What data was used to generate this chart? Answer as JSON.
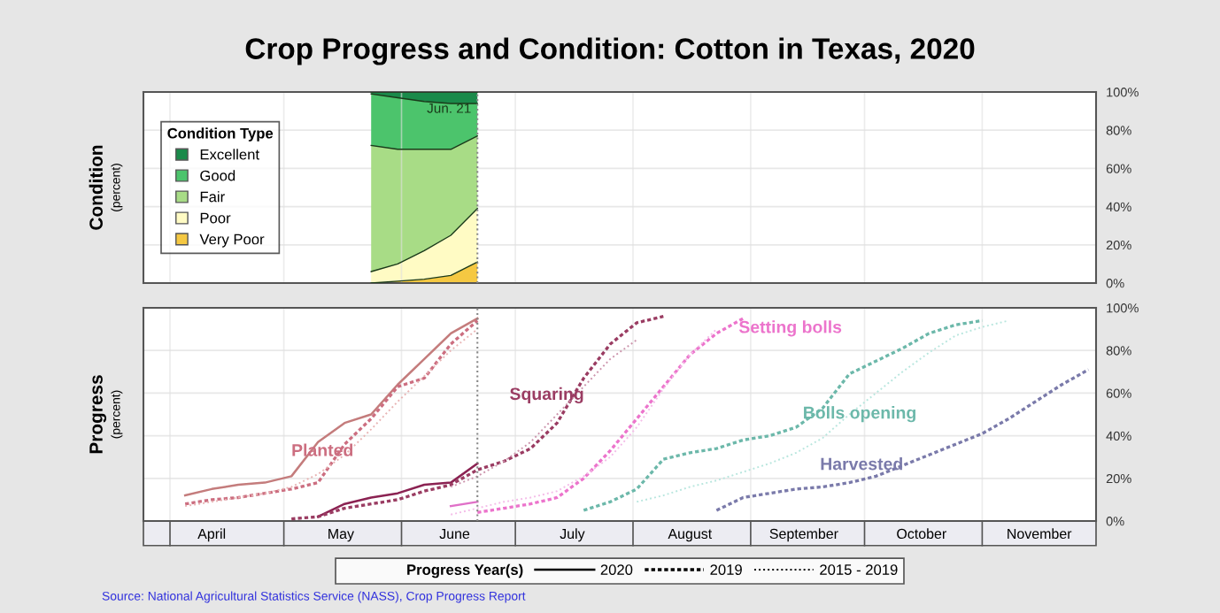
{
  "chart_data": [
    {
      "type": "area",
      "stacked": true,
      "title": "Crop Progress and Condition: Cotton in Texas, 2020",
      "ylabel": "Condition\n(percent)",
      "legend_title": "Condition Type",
      "legend": "center left",
      "grid": true,
      "tick_labels": "y",
      "x": [
        "2020-05-24",
        "2020-05-31",
        "2020-06-07",
        "2020-06-14",
        "2020-06-21"
      ],
      "series": [
        {
          "name": "Very Poor",
          "color": "#f5c842",
          "values": [
            0,
            1,
            2,
            4,
            11
          ]
        },
        {
          "name": "Poor",
          "color": "#fffbc4",
          "values": [
            6,
            9,
            15,
            21,
            28
          ]
        },
        {
          "name": "Fair",
          "color": "#a8dc86",
          "values": [
            66,
            60,
            53,
            45,
            38
          ]
        },
        {
          "name": "Good",
          "color": "#4cc46c",
          "values": [
            27,
            27,
            25,
            24,
            17
          ]
        },
        {
          "name": "Excellent",
          "color": "#1a8a4a",
          "values": [
            1,
            3,
            5,
            6,
            6
          ]
        }
      ],
      "xlim": [
        "2020-03-25",
        "2020-12-01"
      ],
      "xticks": [
        {
          "value": "2020-04-01",
          "label": null
        },
        {
          "value": "2020-05-01",
          "label": null
        },
        {
          "value": "2020-06-01",
          "label": null
        },
        {
          "value": "2020-07-01",
          "label": null
        },
        {
          "value": "2020-08-01",
          "label": null
        },
        {
          "value": "2020-09-01",
          "label": null
        },
        {
          "value": "2020-10-01",
          "label": null
        },
        {
          "value": "2020-11-01",
          "label": null
        }
      ],
      "ylim": [
        0,
        100
      ],
      "yticks": [
        {
          "value": 0,
          "label": "0%"
        },
        {
          "value": 20,
          "label": "20%"
        },
        {
          "value": 40,
          "label": "40%"
        },
        {
          "value": 60,
          "label": "60%"
        },
        {
          "value": 80,
          "label": "80%"
        },
        {
          "value": 100,
          "label": "100%"
        }
      ],
      "ref_lines": [
        {
          "axis": "x",
          "value": "2020-06-21",
          "label": "Jun. 21",
          "color": "#888888",
          "line_style": "dotted"
        }
      ]
    },
    {
      "type": "line",
      "ylabel": "Progress\n(percent)",
      "legend_title": "Progress Year(s)",
      "grid": true,
      "series": [
        {
          "color": "#c47c7c",
          "line_style": "solid",
          "x": [
            "2020-04-05",
            "2020-04-12",
            "2020-04-19",
            "2020-04-26",
            "2020-05-03",
            "2020-05-10",
            "2020-05-17",
            "2020-05-24",
            "2020-05-31",
            "2020-06-07",
            "2020-06-14",
            "2020-06-21"
          ],
          "values": [
            12,
            15,
            17,
            18,
            21,
            37,
            46,
            50,
            64,
            76,
            88,
            95
          ]
        },
        {
          "name": "Planted",
          "color": "#cc6e80",
          "line_style": "dashed",
          "x": [
            "2020-04-05",
            "2020-04-12",
            "2020-04-19",
            "2020-04-26",
            "2020-05-03",
            "2020-05-10",
            "2020-05-17",
            "2020-05-24",
            "2020-05-31",
            "2020-06-07",
            "2020-06-14",
            "2020-06-21"
          ],
          "values": [
            8,
            10,
            11,
            13,
            15,
            18,
            36,
            48,
            63,
            67,
            83,
            94
          ]
        },
        {
          "color": "#e8b4b4",
          "line_style": "dotted",
          "x": [
            "2020-04-05",
            "2020-04-12",
            "2020-04-19",
            "2020-04-26",
            "2020-05-03",
            "2020-05-10",
            "2020-05-17",
            "2020-05-24",
            "2020-05-31",
            "2020-06-07",
            "2020-06-14",
            "2020-06-21"
          ],
          "values": [
            7,
            9,
            11,
            13,
            16,
            22,
            31,
            43,
            56,
            68,
            80,
            90
          ]
        },
        {
          "color": "#8b2252",
          "line_style": "solid",
          "x": [
            "2020-05-10",
            "2020-05-17",
            "2020-05-24",
            "2020-05-31",
            "2020-06-07",
            "2020-06-14",
            "2020-06-21"
          ],
          "values": [
            2,
            8,
            11,
            13,
            17,
            18,
            27
          ]
        },
        {
          "name": "Squaring",
          "color": "#9a3c62",
          "line_style": "dashed",
          "x": [
            "2020-05-03",
            "2020-05-10",
            "2020-05-17",
            "2020-05-24",
            "2020-05-31",
            "2020-06-07",
            "2020-06-14",
            "2020-06-21",
            "2020-06-28",
            "2020-07-05",
            "2020-07-12",
            "2020-07-19",
            "2020-07-26",
            "2020-08-02",
            "2020-08-09"
          ],
          "values": [
            1,
            2,
            6,
            8,
            10,
            14,
            17,
            24,
            28,
            34,
            46,
            67,
            83,
            93,
            96
          ]
        },
        {
          "color": "#cc94ac",
          "line_style": "dotted",
          "x": [
            "2020-06-14",
            "2020-06-21",
            "2020-06-28",
            "2020-07-05",
            "2020-07-12",
            "2020-07-19",
            "2020-07-26",
            "2020-08-02"
          ],
          "values": [
            16,
            21,
            28,
            37,
            50,
            63,
            76,
            85
          ]
        },
        {
          "color": "#e070c8",
          "line_style": "solid",
          "x": [
            "2020-06-14",
            "2020-06-21"
          ],
          "values": [
            7,
            9
          ]
        },
        {
          "name": "Setting bolls",
          "color": "#ec74cc",
          "line_style": "dashed",
          "x": [
            "2020-06-21",
            "2020-06-28",
            "2020-07-05",
            "2020-07-12",
            "2020-07-19",
            "2020-07-26",
            "2020-08-02",
            "2020-08-09",
            "2020-08-16",
            "2020-08-23",
            "2020-08-30"
          ],
          "values": [
            4,
            6,
            8,
            11,
            20,
            33,
            48,
            63,
            78,
            88,
            95
          ]
        },
        {
          "color": "#f4bce8",
          "line_style": "dotted",
          "x": [
            "2020-06-14",
            "2020-06-21",
            "2020-06-28",
            "2020-07-05",
            "2020-07-12",
            "2020-07-19",
            "2020-07-26",
            "2020-08-02",
            "2020-08-09",
            "2020-08-16",
            "2020-08-23"
          ],
          "values": [
            3,
            6,
            9,
            11,
            14,
            21,
            30,
            44,
            62,
            78,
            90
          ]
        },
        {
          "name": "Bolls opening",
          "color": "#6cb8aa",
          "line_style": "dashed",
          "x": [
            "2020-07-19",
            "2020-07-26",
            "2020-08-02",
            "2020-08-09",
            "2020-08-16",
            "2020-08-23",
            "2020-08-30",
            "2020-09-06",
            "2020-09-13",
            "2020-09-20",
            "2020-09-27",
            "2020-10-04",
            "2020-10-11",
            "2020-10-18",
            "2020-10-25",
            "2020-11-01"
          ],
          "values": [
            5,
            9,
            15,
            29,
            32,
            34,
            38,
            40,
            44,
            53,
            69,
            75,
            81,
            88,
            92,
            94
          ]
        },
        {
          "color": "#b8e6de",
          "line_style": "dotted",
          "x": [
            "2020-08-02",
            "2020-08-09",
            "2020-08-16",
            "2020-08-23",
            "2020-08-30",
            "2020-09-06",
            "2020-09-13",
            "2020-09-20",
            "2020-09-27",
            "2020-10-04",
            "2020-10-11",
            "2020-10-18",
            "2020-10-25",
            "2020-11-01",
            "2020-11-08"
          ],
          "values": [
            9,
            12,
            16,
            19,
            23,
            27,
            32,
            39,
            50,
            60,
            70,
            79,
            87,
            91,
            94
          ]
        },
        {
          "name": "Harvested",
          "color": "#7a7aaa",
          "line_style": "dashed",
          "x": [
            "2020-08-23",
            "2020-08-30",
            "2020-09-06",
            "2020-09-13",
            "2020-09-20",
            "2020-09-27",
            "2020-10-04",
            "2020-10-11",
            "2020-10-18",
            "2020-10-25",
            "2020-11-01",
            "2020-11-08",
            "2020-11-15",
            "2020-11-22",
            "2020-11-29"
          ],
          "values": [
            5,
            11,
            13,
            15,
            16,
            18,
            21,
            26,
            31,
            36,
            41,
            48,
            56,
            64,
            71
          ]
        }
      ],
      "xlim": [
        "2020-03-25",
        "2020-12-01"
      ],
      "xticks": [
        {
          "value": "2020-04-01",
          "label": null
        },
        {
          "value": "2020-05-01",
          "label": null
        },
        {
          "value": "2020-06-01",
          "label": null
        },
        {
          "value": "2020-07-01",
          "label": null
        },
        {
          "value": "2020-08-01",
          "label": null
        },
        {
          "value": "2020-09-01",
          "label": null
        },
        {
          "value": "2020-10-01",
          "label": null
        },
        {
          "value": "2020-11-01",
          "label": null
        },
        {
          "value": "2020-04-12",
          "label": "April"
        },
        {
          "value": "2020-05-16",
          "label": "May"
        },
        {
          "value": "2020-06-15",
          "label": "June"
        },
        {
          "value": "2020-07-16",
          "label": "July"
        },
        {
          "value": "2020-08-16",
          "label": "August"
        },
        {
          "value": "2020-09-15",
          "label": "September"
        },
        {
          "value": "2020-10-16",
          "label": "October"
        },
        {
          "value": "2020-11-16",
          "label": "November"
        }
      ],
      "ylim": [
        0,
        100
      ],
      "yticks": [
        {
          "value": 0,
          "label": "0%"
        },
        {
          "value": 20,
          "label": "20%"
        },
        {
          "value": 40,
          "label": "40%"
        },
        {
          "value": 60,
          "label": "60%"
        },
        {
          "value": 80,
          "label": "80%"
        },
        {
          "value": 100,
          "label": "100%"
        }
      ],
      "ref_lines": [
        {
          "axis": "x",
          "value": "2020-06-21",
          "color": "#888888",
          "line_style": "dotted"
        }
      ],
      "annotations": [
        "2020",
        "2019",
        "2015 - 2019",
        "Source: National Agricultural Statistics Service (NASS), Crop Progress Report"
      ]
    }
  ]
}
